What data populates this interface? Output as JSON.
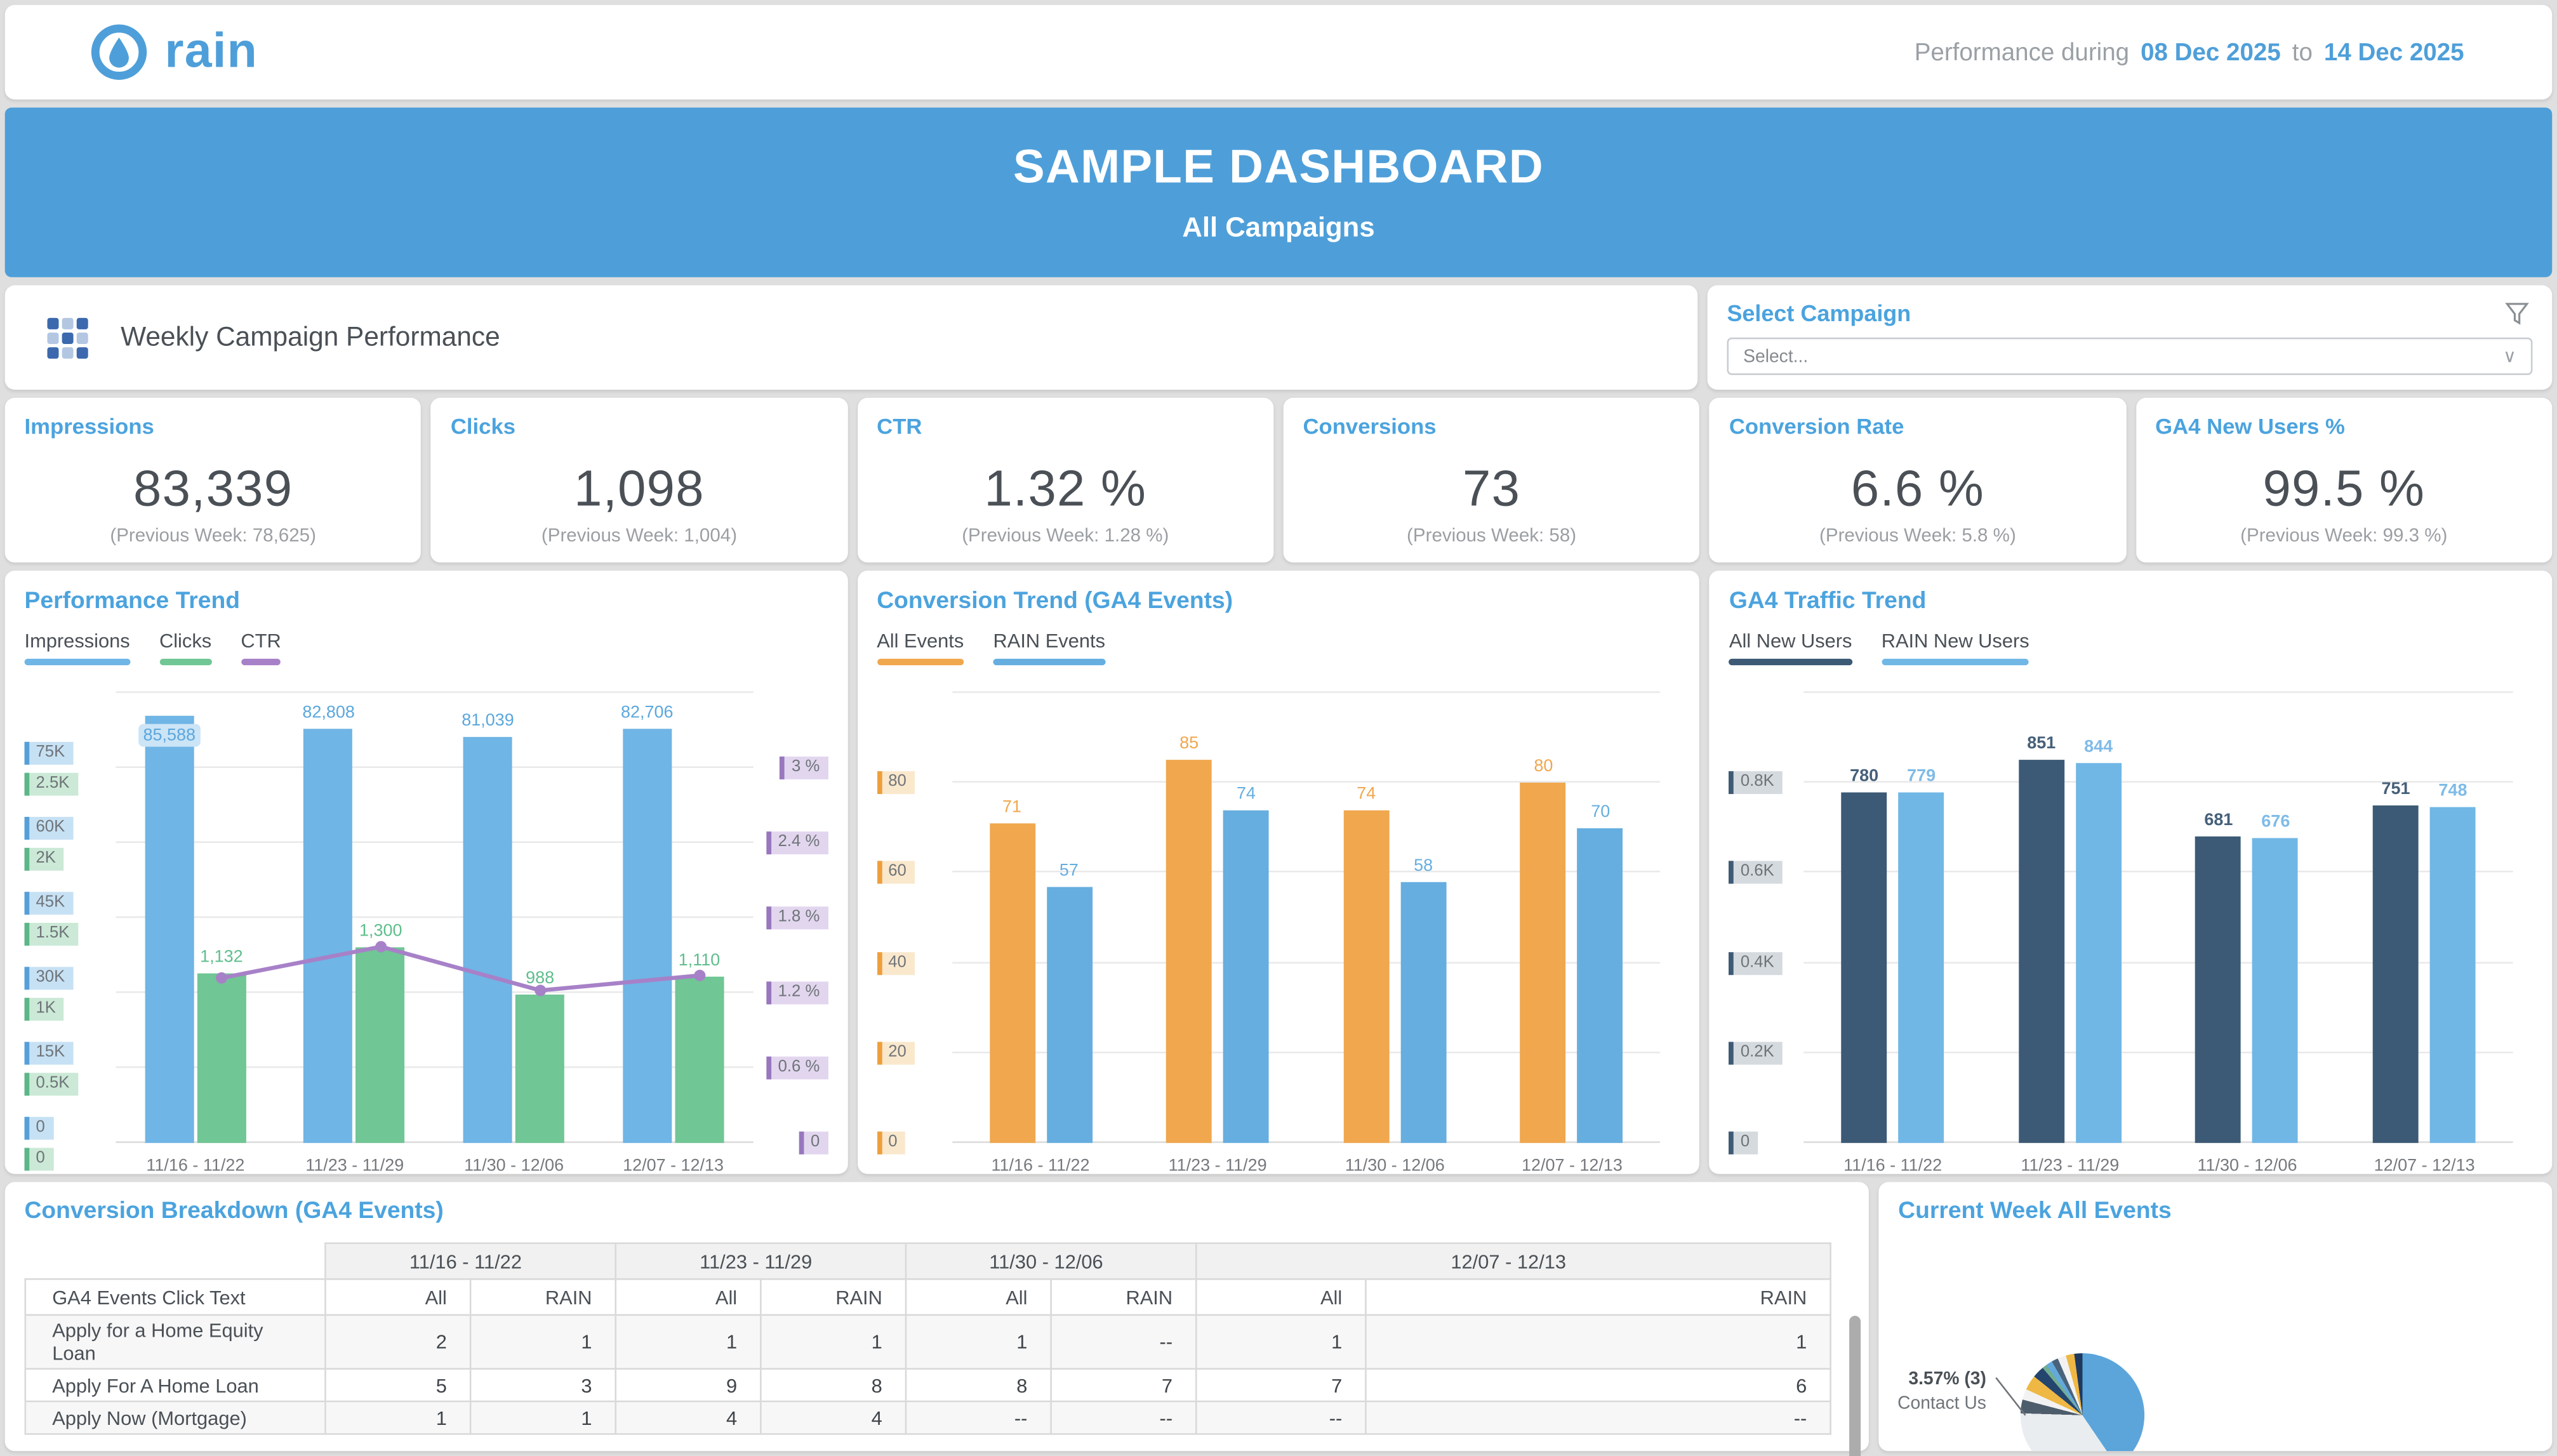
{
  "topbar": {
    "logo_text": "rain",
    "performance_label": "Performance during",
    "date_from": "08 Dec 2025",
    "to_word": "to",
    "date_to": "14 Dec 2025"
  },
  "banner": {
    "title": "SAMPLE DASHBOARD",
    "subtitle": "All Campaigns"
  },
  "section": {
    "weekly_title": "Weekly Campaign Performance"
  },
  "campaign_filter": {
    "title": "Select Campaign",
    "placeholder": "Select..."
  },
  "kpis": [
    {
      "title": "Impressions",
      "value": "83,339",
      "previous": "(Previous Week: 78,625)"
    },
    {
      "title": "Clicks",
      "value": "1,098",
      "previous": "(Previous Week: 1,004)"
    },
    {
      "title": "CTR",
      "value": "1.32 %",
      "previous": "(Previous Week: 1.28 %)"
    },
    {
      "title": "Conversions",
      "value": "73",
      "previous": "(Previous Week: 58)"
    },
    {
      "title": "Conversion Rate",
      "value": "6.6 %",
      "previous": "(Previous Week: 5.8 %)"
    },
    {
      "title": "GA4 New Users %",
      "value": "99.5 %",
      "previous": "(Previous Week: 99.3 %)"
    }
  ],
  "chart_data": [
    {
      "type": "bar+line",
      "title": "Performance Trend",
      "categories": [
        "11/16 - 11/22",
        "11/23 - 11/29",
        "11/30 - 12/06",
        "12/07 - 12/13"
      ],
      "legend": [
        {
          "label": "Impressions",
          "color": "#6FB5E5"
        },
        {
          "label": "Clicks",
          "color": "#70C694"
        },
        {
          "label": "CTR",
          "color": "#A781C8"
        }
      ],
      "series": [
        {
          "name": "Impressions",
          "kind": "bar",
          "axis": 0,
          "color": "#6FB5E5",
          "label_color": "#5BA7DD",
          "values": [
            85588,
            82808,
            81039,
            82706
          ],
          "labels": [
            "85,588",
            "82,808",
            "81,039",
            "82,706"
          ],
          "label_inside": [
            true,
            false,
            false,
            false
          ]
        },
        {
          "name": "Clicks",
          "kind": "bar",
          "axis": 1,
          "color": "#70C694",
          "label_color": "#5FBE8C",
          "values": [
            1132,
            1300,
            988,
            1110
          ],
          "labels": [
            "1,132",
            "1,300",
            "988",
            "1,110"
          ]
        },
        {
          "name": "CTR",
          "kind": "line",
          "axis": "right",
          "color": "#A781C8",
          "values": [
            1.32,
            1.57,
            1.22,
            1.34
          ]
        }
      ],
      "axes_left": [
        {
          "max": 90000,
          "chip_bg": "#C7E1F4",
          "chip_stripe": "#579FD9",
          "ticks": [
            {
              "v": 75000,
              "label": "75K"
            },
            {
              "v": 60000,
              "label": "60K"
            },
            {
              "v": 45000,
              "label": "45K"
            },
            {
              "v": 30000,
              "label": "30K"
            },
            {
              "v": 15000,
              "label": "15K"
            },
            {
              "v": 0,
              "label": "0"
            }
          ]
        },
        {
          "max": 3000,
          "chip_bg": "#CBE9D6",
          "chip_stripe": "#5CB788",
          "ticks": [
            {
              "v": 2500,
              "label": "2.5K"
            },
            {
              "v": 2000,
              "label": "2K"
            },
            {
              "v": 1500,
              "label": "1.5K"
            },
            {
              "v": 1000,
              "label": "1K"
            },
            {
              "v": 500,
              "label": "0.5K"
            },
            {
              "v": 0,
              "label": "0"
            }
          ]
        }
      ],
      "axis_right": {
        "max": 3.6,
        "chip_bg": "#E2D6EF",
        "chip_stripe": "#9877BD",
        "ticks": [
          {
            "v": 3,
            "label": "3 %"
          },
          {
            "v": 2.4,
            "label": "2.4 %"
          },
          {
            "v": 1.8,
            "label": "1.8 %"
          },
          {
            "v": 1.2,
            "label": "1.2 %"
          },
          {
            "v": 0.6,
            "label": "0.6 %"
          },
          {
            "v": 0,
            "label": "0"
          }
        ]
      },
      "gridlines": 7
    },
    {
      "type": "bar",
      "title": "Conversion Trend (GA4 Events)",
      "categories": [
        "11/16 - 11/22",
        "11/23 - 11/29",
        "11/30 - 12/06",
        "12/07 - 12/13"
      ],
      "legend": [
        {
          "label": "All Events",
          "color": "#F0A74E"
        },
        {
          "label": "RAIN Events",
          "color": "#66AEDF"
        }
      ],
      "series": [
        {
          "name": "All Events",
          "kind": "bar",
          "axis": 0,
          "color": "#F0A74E",
          "label_color": "#F0A74E",
          "values": [
            71,
            85,
            74,
            80
          ],
          "labels": [
            "71",
            "85",
            "74",
            "80"
          ]
        },
        {
          "name": "RAIN Events",
          "kind": "bar",
          "axis": 0,
          "color": "#66AEDF",
          "label_color": "#66AEDF",
          "values": [
            57,
            74,
            58,
            70
          ],
          "labels": [
            "57",
            "74",
            "58",
            "70"
          ]
        }
      ],
      "axes_left": [
        {
          "max": 100,
          "chip_bg": "#FAE8CD",
          "chip_stripe": "#EE9F3C",
          "ticks": [
            {
              "v": 80,
              "label": "80"
            },
            {
              "v": 60,
              "label": "60"
            },
            {
              "v": 40,
              "label": "40"
            },
            {
              "v": 20,
              "label": "20"
            },
            {
              "v": 0,
              "label": "0"
            }
          ]
        }
      ],
      "gridlines": 6
    },
    {
      "type": "bar",
      "title": "GA4 Traffic Trend",
      "categories": [
        "11/16 - 11/22",
        "11/23 - 11/29",
        "11/30 - 12/06",
        "12/07 - 12/13"
      ],
      "legend": [
        {
          "label": "All New Users",
          "color": "#3C5A75"
        },
        {
          "label": "RAIN New Users",
          "color": "#70B7E6"
        }
      ],
      "series": [
        {
          "name": "All New Users",
          "kind": "bar",
          "axis": 0,
          "color": "#3C5A75",
          "label_color": "#46607A",
          "label_weight": 700,
          "values": [
            780,
            851,
            681,
            751
          ],
          "labels": [
            "780",
            "851",
            "681",
            "751"
          ]
        },
        {
          "name": "RAIN New Users",
          "kind": "bar",
          "axis": 0,
          "color": "#70B7E6",
          "label_color": "#7FBBE8",
          "label_weight": 700,
          "values": [
            779,
            844,
            676,
            748
          ],
          "labels": [
            "779",
            "844",
            "676",
            "748"
          ]
        }
      ],
      "axes_left": [
        {
          "max": 1000,
          "chip_bg": "#D5DADF",
          "chip_stripe": "#3E5A75",
          "ticks": [
            {
              "v": 800,
              "label": "0.8K"
            },
            {
              "v": 600,
              "label": "0.6K"
            },
            {
              "v": 400,
              "label": "0.4K"
            },
            {
              "v": 200,
              "label": "0.2K"
            },
            {
              "v": 0,
              "label": "0"
            }
          ]
        }
      ],
      "gridlines": 6
    },
    {
      "type": "pie",
      "title": "Current Week All Events",
      "callout": {
        "value": "3.57% (3)",
        "label": "Contact Us"
      },
      "slices": [
        {
          "pct": 40.5,
          "color": "#5BA5DB"
        },
        {
          "pct": 35.0,
          "color": "#E9EDF0"
        },
        {
          "label": "Contact Us",
          "pct": 3.57,
          "color": "#4D5D6C"
        },
        {
          "pct": 2.8,
          "color": "#F2F2F2"
        },
        {
          "pct": 3.9,
          "color": "#EFB844"
        },
        {
          "pct": 3.1,
          "color": "#24456E"
        },
        {
          "pct": 1.2,
          "color": "#71AE92"
        },
        {
          "pct": 1.7,
          "color": "#63A9DC"
        },
        {
          "pct": 1.7,
          "color": "#49637B"
        },
        {
          "pct": 2.2,
          "color": "#F2F2F2"
        },
        {
          "pct": 2.2,
          "color": "#EFB844"
        },
        {
          "pct": 2.13,
          "color": "#1F3A5F"
        }
      ]
    }
  ],
  "table": {
    "title": "Conversion Breakdown (GA4 Events)",
    "week_groups": [
      "11/16 - 11/22",
      "11/23 - 11/29",
      "11/30 - 12/06",
      "12/07 - 12/13"
    ],
    "row_header": "GA4 Events Click Text",
    "sub_headers": [
      "All",
      "RAIN"
    ],
    "rows": [
      {
        "label": "Apply for a Home Equity Loan",
        "values": [
          "2",
          "1",
          "1",
          "1",
          "1",
          "--",
          "1",
          "1"
        ]
      },
      {
        "label": "Apply For A Home Loan",
        "values": [
          "5",
          "3",
          "9",
          "8",
          "8",
          "7",
          "7",
          "6"
        ]
      },
      {
        "label": "Apply Now (Mortgage)",
        "values": [
          "1",
          "1",
          "4",
          "4",
          "--",
          "--",
          "--",
          "--"
        ]
      }
    ]
  },
  "colors": {
    "brand": "#4E9FD9",
    "title_blue": "#4BA3DE",
    "text_dark": "#4A5056",
    "text_gray": "#9B9FA3"
  }
}
